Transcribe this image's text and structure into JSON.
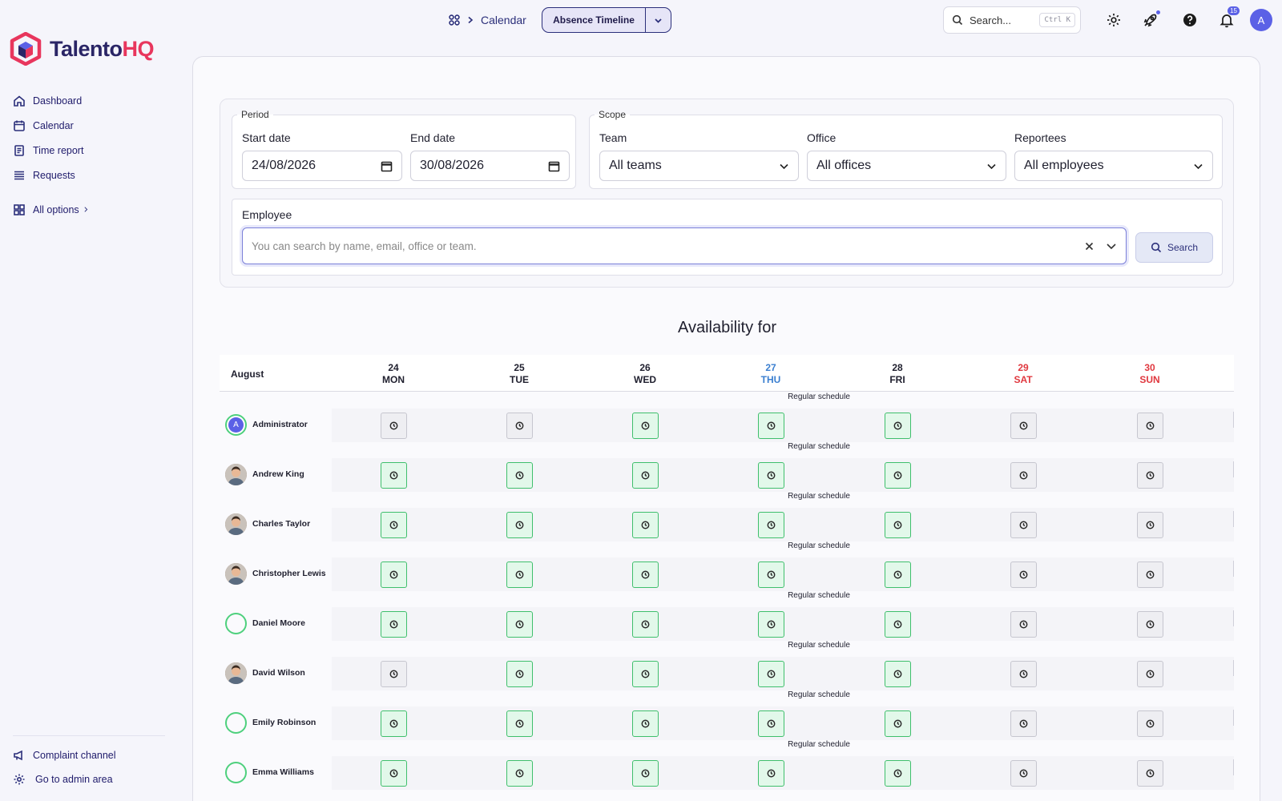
{
  "brand": {
    "name_main": "Talento",
    "name_accent": "HQ"
  },
  "sidebar": {
    "items": [
      {
        "label": "Dashboard",
        "icon": "home-icon"
      },
      {
        "label": "Calendar",
        "icon": "calendar-icon"
      },
      {
        "label": "Time report",
        "icon": "report-icon"
      },
      {
        "label": "Requests",
        "icon": "list-icon"
      }
    ],
    "all_options": "All options",
    "bottom": [
      {
        "label": "Complaint channel",
        "icon": "megaphone-icon"
      },
      {
        "label": "Go to admin area",
        "icon": "gear-icon"
      }
    ]
  },
  "topbar": {
    "breadcrumb": "Calendar",
    "view_selector": "Absence Timeline",
    "search_placeholder": "Search...",
    "search_shortcut": "Ctrl K",
    "notifications_count": "15",
    "user_initial": "A"
  },
  "filters": {
    "period_legend": "Period",
    "start_label": "Start date",
    "start_value": "24/08/2026",
    "end_label": "End date",
    "end_value": "30/08/2026",
    "scope_legend": "Scope",
    "team_label": "Team",
    "team_value": "All teams",
    "office_label": "Office",
    "office_value": "All offices",
    "reportees_label": "Reportees",
    "reportees_value": "All employees",
    "employee_label": "Employee",
    "employee_placeholder": "You can search by name, email, office or team.",
    "search_button": "Search"
  },
  "availability_title": "Availability for",
  "calendar": {
    "month": "August",
    "days": [
      {
        "num": "24",
        "name": "MON",
        "kind": "normal"
      },
      {
        "num": "25",
        "name": "TUE",
        "kind": "normal"
      },
      {
        "num": "26",
        "name": "WED",
        "kind": "normal"
      },
      {
        "num": "27",
        "name": "THU",
        "kind": "today"
      },
      {
        "num": "28",
        "name": "FRI",
        "kind": "normal"
      },
      {
        "num": "29",
        "name": "SAT",
        "kind": "weekend"
      },
      {
        "num": "30",
        "name": "SUN",
        "kind": "weekend"
      }
    ],
    "schedule_label": "Regular schedule",
    "employees": [
      {
        "name": "Administrator",
        "avatar": "letter",
        "initial": "A",
        "cells": [
          "off",
          "off",
          "work",
          "work",
          "work",
          "off",
          "off"
        ]
      },
      {
        "name": "Andrew King",
        "avatar": "photo",
        "cells": [
          "work",
          "work",
          "work",
          "work",
          "work",
          "off",
          "off"
        ]
      },
      {
        "name": "Charles Taylor",
        "avatar": "photo",
        "cells": [
          "work",
          "work",
          "work",
          "work",
          "work",
          "off",
          "off"
        ]
      },
      {
        "name": "Christopher Lewis",
        "avatar": "photo",
        "cells": [
          "work",
          "work",
          "work",
          "work",
          "work",
          "off",
          "off"
        ]
      },
      {
        "name": "Daniel Moore",
        "avatar": "ring",
        "cells": [
          "work",
          "work",
          "work",
          "work",
          "work",
          "off",
          "off"
        ]
      },
      {
        "name": "David Wilson",
        "avatar": "photo",
        "cells": [
          "off",
          "work",
          "work",
          "work",
          "work",
          "off",
          "off"
        ]
      },
      {
        "name": "Emily Robinson",
        "avatar": "ring",
        "cells": [
          "work",
          "work",
          "work",
          "work",
          "work",
          "off",
          "off"
        ]
      },
      {
        "name": "Emma Williams",
        "avatar": "ring",
        "cells": [
          "work",
          "work",
          "work",
          "work",
          "work",
          "off",
          "off"
        ]
      }
    ]
  },
  "colors": {
    "accent": "#5b61e6",
    "brand_navy": "#2a2566",
    "brand_red": "#e8365d",
    "work_green": "#3fbf6c",
    "today_blue": "#3b7fd0",
    "weekend_red": "#e0383f"
  }
}
